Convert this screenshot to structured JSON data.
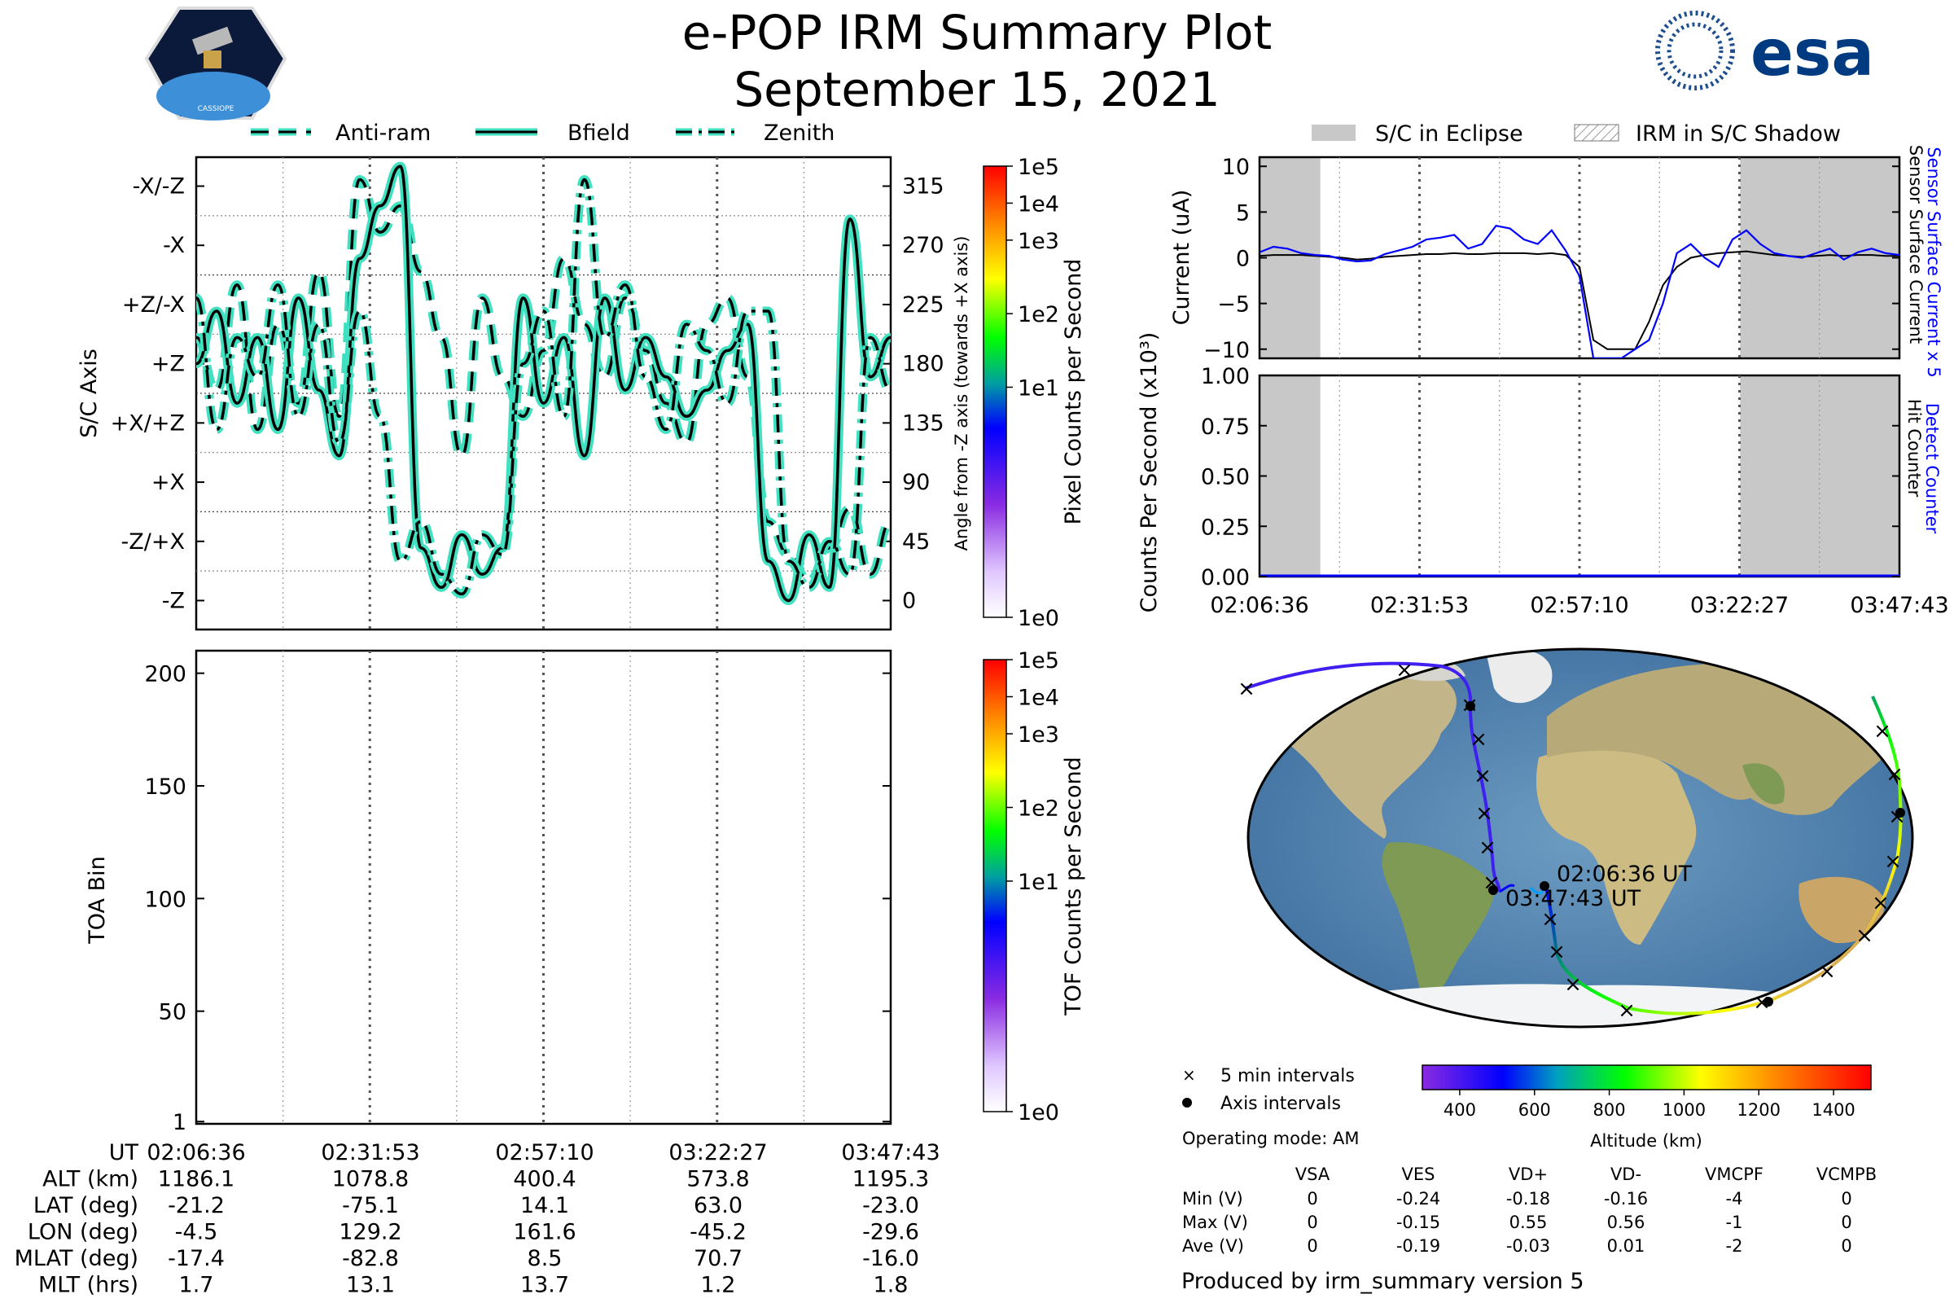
{
  "header": {
    "title": "e-POP IRM Summary Plot",
    "date": "September 15, 2021",
    "mission_logo_text": "CASSIOPE",
    "agency_logo_text": "esa"
  },
  "colors": {
    "trace_fill": "#40e0c0",
    "trace_line": "#000000",
    "current_blue": "#0000ff",
    "eclipse_gray": "#c8c8c8"
  },
  "legends": {
    "angle": [
      "Anti-ram",
      "Bfield",
      "Zenith"
    ],
    "current": [
      "S/C in Eclipse",
      "IRM in S/C Shadow"
    ]
  },
  "time_ticks": [
    "02:06:36",
    "02:31:53",
    "02:57:10",
    "03:22:27",
    "03:47:43"
  ],
  "chart_data": [
    {
      "type": "line",
      "name": "attitude",
      "ylabel": "S/C Axis",
      "ylabel_right": "Angle from -Z axis (towards +X axis)",
      "y_axis_labels": [
        "-X/-Z",
        "-X",
        "+Z/-X",
        "+Z",
        "+X/+Z",
        "+X",
        "-Z/+X",
        "-Z"
      ],
      "y_right_ticks": [
        "315",
        "270",
        "225",
        "180",
        "135",
        "90",
        "45",
        "0"
      ],
      "ylim": [
        -22,
        337
      ],
      "series": [
        {
          "name": "Anti-ram",
          "style": "dashed",
          "values": [
            200,
            160,
            240,
            130,
            210,
            150,
            250,
            140,
            320,
            280,
            300,
            250,
            200,
            110,
            230,
            170,
            140,
            190,
            260,
            210,
            170,
            230,
            190,
            150,
            120,
            210,
            230,
            170,
            60,
            35,
            15,
            40,
            70,
            20,
            60
          ]
        },
        {
          "name": "Bfield",
          "style": "solid",
          "values": [
            180,
            220,
            150,
            200,
            130,
            230,
            160,
            110,
            260,
            300,
            330,
            40,
            10,
            50,
            20,
            40,
            230,
            150,
            200,
            110,
            230,
            160,
            200,
            170,
            140,
            160,
            190,
            210,
            30,
            0,
            50,
            10,
            290,
            170,
            200
          ]
        },
        {
          "name": "Zenith",
          "style": "dashdot",
          "values": [
            230,
            130,
            200,
            170,
            240,
            140,
            210,
            120,
            220,
            140,
            30,
            60,
            20,
            5,
            50,
            35,
            180,
            220,
            140,
            320,
            200,
            240,
            170,
            130,
            210,
            190,
            150,
            220,
            220,
            30,
            10,
            45,
            20,
            200,
            160
          ]
        }
      ],
      "colorbar": {
        "label": "Pixel Counts per Second",
        "ticks": [
          "1e5",
          "1e4",
          "1e3",
          "1e2",
          "1e1",
          "1e0"
        ]
      }
    },
    {
      "type": "heatmap",
      "name": "toa",
      "ylabel": "TOA Bin",
      "y_ticks": [
        "200",
        "150",
        "100",
        "50",
        "1"
      ],
      "ylim": [
        0,
        210
      ],
      "values": [],
      "colorbar": {
        "label": "TOF Counts per Second",
        "ticks": [
          "1e5",
          "1e4",
          "1e3",
          "1e2",
          "1e1",
          "1e0"
        ]
      }
    },
    {
      "type": "line",
      "name": "current",
      "ylabel": "Current (uA)",
      "ylim": [
        -11,
        11
      ],
      "y_ticks": [
        "10",
        "5",
        "0",
        "−5",
        "−10"
      ],
      "right_labels": [
        "Sensor Surface Current x 5",
        "Sensor Surface Current"
      ],
      "series": [
        {
          "name": "Sensor Surface Current x 5",
          "color": "#0000ff",
          "values": [
            0.6,
            1.2,
            1.0,
            0.5,
            0.3,
            0.2,
            -0.2,
            -0.4,
            -0.3,
            0.4,
            0.8,
            1.2,
            2.0,
            2.2,
            2.5,
            1.0,
            1.5,
            3.5,
            3.2,
            2.0,
            1.5,
            3.0,
            0.8,
            -2.0,
            -11,
            -11,
            -11,
            -10,
            -9,
            -5,
            0.5,
            1.5,
            0.0,
            -1.0,
            2.0,
            3.0,
            1.5,
            0.5,
            0.2,
            0.0,
            0.5,
            1.0,
            -0.2,
            0.6,
            1.0,
            0.5,
            0.3
          ]
        },
        {
          "name": "Sensor Surface Current",
          "color": "#000000",
          "values": [
            0.2,
            0.3,
            0.3,
            0.3,
            0.2,
            0.1,
            0.0,
            -0.2,
            -0.1,
            0.1,
            0.2,
            0.3,
            0.4,
            0.4,
            0.5,
            0.4,
            0.4,
            0.5,
            0.5,
            0.5,
            0.4,
            0.5,
            0.3,
            -1.0,
            -9.0,
            -10.0,
            -10.0,
            -10.0,
            -7.0,
            -3.0,
            -1.0,
            0.0,
            0.3,
            0.5,
            0.6,
            0.7,
            0.5,
            0.3,
            0.2,
            0.1,
            0.2,
            0.3,
            0.2,
            0.3,
            0.3,
            0.2,
            0.2
          ]
        }
      ],
      "eclipse_spans": [
        [
          0,
          0.095
        ],
        [
          0.751,
          1.0
        ]
      ]
    },
    {
      "type": "line",
      "name": "counts",
      "ylabel": "Counts Per Second (x10³)",
      "ylim": [
        0,
        1.0
      ],
      "y_ticks": [
        "1.00",
        "0.75",
        "0.50",
        "0.25",
        "0.00"
      ],
      "right_labels": [
        "Detect Counter",
        "Hit Counter"
      ],
      "series": [
        {
          "name": "Detect Counter",
          "color": "#0000ff",
          "values": [
            0,
            0
          ]
        },
        {
          "name": "Hit Counter",
          "color": "#000000",
          "values": [
            0,
            0
          ]
        }
      ],
      "eclipse_spans": [
        [
          0,
          0.095
        ],
        [
          0.751,
          1.0
        ]
      ]
    }
  ],
  "map": {
    "legend": [
      "5 min intervals",
      "Axis intervals"
    ],
    "operating_mode": "Operating mode: AM",
    "start_label": "02:06:36 UT",
    "end_label": "03:47:43 UT",
    "colorbar_label": "Altitude (km)",
    "colorbar_ticks": [
      "400",
      "600",
      "800",
      "1000",
      "1200",
      "1400"
    ],
    "altitude_range": [
      300,
      1500
    ]
  },
  "ephemeris": {
    "rows": [
      {
        "label": "UT",
        "values": [
          "02:06:36",
          "02:31:53",
          "02:57:10",
          "03:22:27",
          "03:47:43"
        ]
      },
      {
        "label": "ALT (km)",
        "values": [
          "1186.1",
          "1078.8",
          "400.4",
          "573.8",
          "1195.3"
        ]
      },
      {
        "label": "LAT (deg)",
        "values": [
          "-21.2",
          "-75.1",
          "14.1",
          "63.0",
          "-23.0"
        ]
      },
      {
        "label": "LON (deg)",
        "values": [
          "-4.5",
          "129.2",
          "161.6",
          "-45.2",
          "-29.6"
        ]
      },
      {
        "label": "MLAT (deg)",
        "values": [
          "-17.4",
          "-82.8",
          "8.5",
          "70.7",
          "-16.0"
        ]
      },
      {
        "label": "MLT (hrs)",
        "values": [
          "1.7",
          "13.1",
          "13.7",
          "1.2",
          "1.8"
        ]
      }
    ]
  },
  "voltages": {
    "headers": [
      "VSA",
      "VES",
      "VD+",
      "VD-",
      "VMCPF",
      "VCMPB"
    ],
    "rows": [
      {
        "label": "Min (V)",
        "values": [
          "0",
          "-0.24",
          "-0.18",
          "-0.16",
          "-4",
          "0"
        ]
      },
      {
        "label": "Max (V)",
        "values": [
          "0",
          "-0.15",
          "0.55",
          "0.56",
          "-1",
          "0"
        ]
      },
      {
        "label": "Ave (V)",
        "values": [
          "0",
          "-0.19",
          "-0.03",
          "0.01",
          "-2",
          "0"
        ]
      }
    ]
  },
  "footer": "Produced by irm_summary version 5"
}
